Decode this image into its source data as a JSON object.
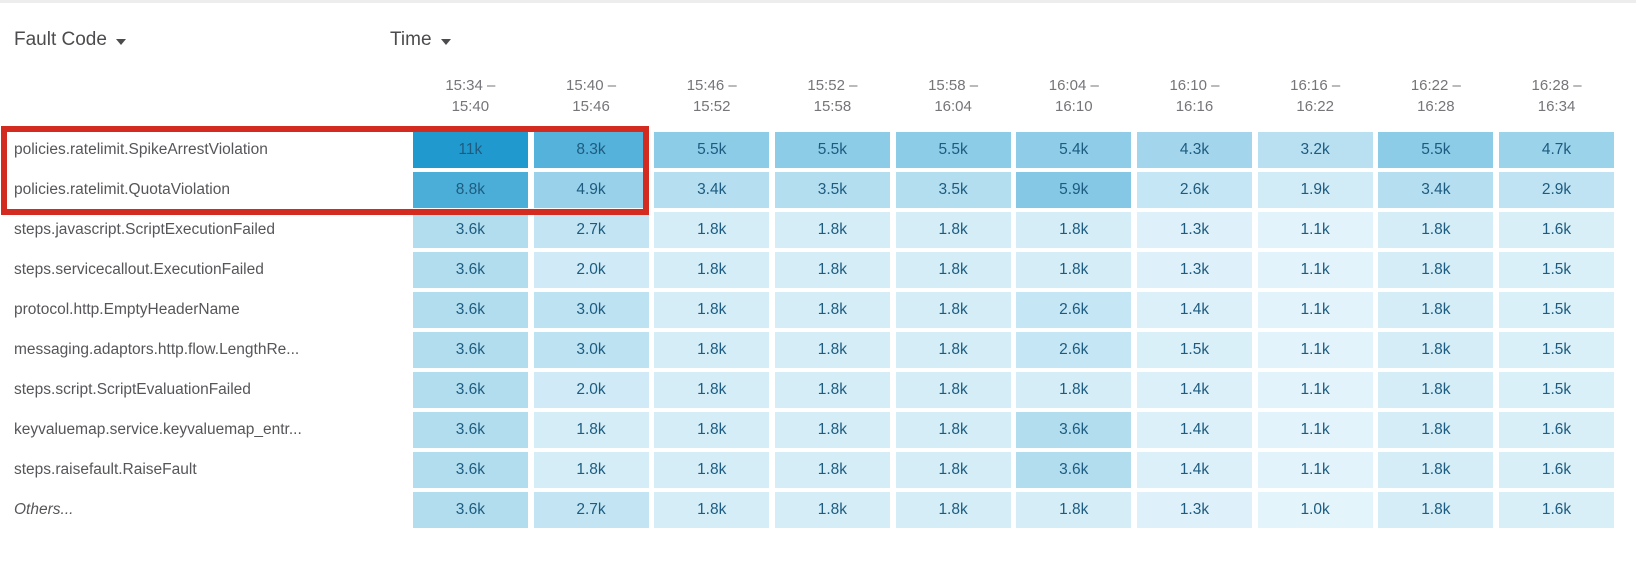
{
  "chart_data": {
    "type": "heatmap",
    "row_header": "Fault Code",
    "column_header": "Time",
    "columns": [
      {
        "line1": "15:34 –",
        "line2": "15:40"
      },
      {
        "line1": "15:40 –",
        "line2": "15:46"
      },
      {
        "line1": "15:46 –",
        "line2": "15:52"
      },
      {
        "line1": "15:52 –",
        "line2": "15:58"
      },
      {
        "line1": "15:58 –",
        "line2": "16:04"
      },
      {
        "line1": "16:04 –",
        "line2": "16:10"
      },
      {
        "line1": "16:10 –",
        "line2": "16:16"
      },
      {
        "line1": "16:16 –",
        "line2": "16:22"
      },
      {
        "line1": "16:22 –",
        "line2": "16:28"
      },
      {
        "line1": "16:28 –",
        "line2": "16:34"
      }
    ],
    "rows": [
      {
        "label": "policies.ratelimit.SpikeArrestViolation",
        "italic": false,
        "values": [
          "11k",
          "8.3k",
          "5.5k",
          "5.5k",
          "5.5k",
          "5.4k",
          "4.3k",
          "3.2k",
          "5.5k",
          "4.7k"
        ]
      },
      {
        "label": "policies.ratelimit.QuotaViolation",
        "italic": false,
        "values": [
          "8.8k",
          "4.9k",
          "3.4k",
          "3.5k",
          "3.5k",
          "5.9k",
          "2.6k",
          "1.9k",
          "3.4k",
          "2.9k"
        ]
      },
      {
        "label": "steps.javascript.ScriptExecutionFailed",
        "italic": false,
        "values": [
          "3.6k",
          "2.7k",
          "1.8k",
          "1.8k",
          "1.8k",
          "1.8k",
          "1.3k",
          "1.1k",
          "1.8k",
          "1.6k"
        ]
      },
      {
        "label": "steps.servicecallout.ExecutionFailed",
        "italic": false,
        "values": [
          "3.6k",
          "2.0k",
          "1.8k",
          "1.8k",
          "1.8k",
          "1.8k",
          "1.3k",
          "1.1k",
          "1.8k",
          "1.5k"
        ]
      },
      {
        "label": "protocol.http.EmptyHeaderName",
        "italic": false,
        "values": [
          "3.6k",
          "3.0k",
          "1.8k",
          "1.8k",
          "1.8k",
          "2.6k",
          "1.4k",
          "1.1k",
          "1.8k",
          "1.5k"
        ]
      },
      {
        "label": "messaging.adaptors.http.flow.LengthRe...",
        "italic": false,
        "values": [
          "3.6k",
          "3.0k",
          "1.8k",
          "1.8k",
          "1.8k",
          "2.6k",
          "1.5k",
          "1.1k",
          "1.8k",
          "1.5k"
        ]
      },
      {
        "label": "steps.script.ScriptEvaluationFailed",
        "italic": false,
        "values": [
          "3.6k",
          "2.0k",
          "1.8k",
          "1.8k",
          "1.8k",
          "1.8k",
          "1.4k",
          "1.1k",
          "1.8k",
          "1.5k"
        ]
      },
      {
        "label": "keyvaluemap.service.keyvaluemap_entr...",
        "italic": false,
        "values": [
          "3.6k",
          "1.8k",
          "1.8k",
          "1.8k",
          "1.8k",
          "3.6k",
          "1.4k",
          "1.1k",
          "1.8k",
          "1.6k"
        ]
      },
      {
        "label": "steps.raisefault.RaiseFault",
        "italic": false,
        "values": [
          "3.6k",
          "1.8k",
          "1.8k",
          "1.8k",
          "1.8k",
          "3.6k",
          "1.4k",
          "1.1k",
          "1.8k",
          "1.6k"
        ]
      },
      {
        "label": "Others...",
        "italic": true,
        "values": [
          "3.6k",
          "2.7k",
          "1.8k",
          "1.8k",
          "1.8k",
          "1.8k",
          "1.3k",
          "1.0k",
          "1.8k",
          "1.6k"
        ]
      }
    ],
    "color_scale": {
      "min_value_k": 1.0,
      "max_value_k": 11.0,
      "min_color": "#e4f4fb",
      "max_color": "#209ace"
    },
    "cell_text_color": "#1d5c80"
  },
  "annotations": {
    "highlight_box": {
      "color": "#d32b20"
    }
  }
}
